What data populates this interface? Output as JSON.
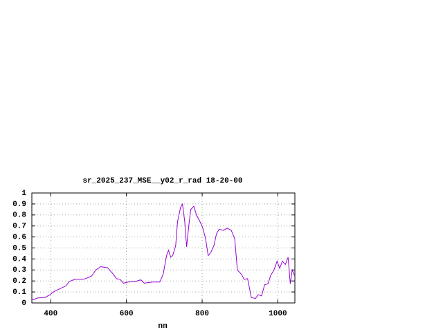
{
  "chart_data": {
    "type": "line",
    "title": "sr_2025_237_MSE__y02_r_rad 18-20-00",
    "x_label": "nm",
    "xlim": [
      350,
      1045
    ],
    "ylim": [
      0,
      1
    ],
    "xticks": [
      400,
      600,
      800,
      1000
    ],
    "yticks": [
      0,
      0.1,
      0.2,
      0.3,
      0.4,
      0.5,
      0.6,
      0.7,
      0.8,
      0.9,
      1
    ],
    "grid": true,
    "series": [
      {
        "color": "#9400d3",
        "x": [
          350,
          366,
          385,
          398,
          409,
          431,
          440,
          449,
          464,
          486,
          495,
          508,
          519,
          532,
          550,
          563,
          574,
          583,
          592,
          605,
          623,
          638,
          647,
          669,
          688,
          697,
          706,
          711,
          717,
          722,
          730,
          735,
          743,
          748,
          754,
          759,
          765,
          770,
          778,
          785,
          792,
          801,
          809,
          816,
          823,
          831,
          838,
          845,
          856,
          866,
          877,
          886,
          893,
          904,
          911,
          920,
          930,
          941,
          948,
          957,
          965,
          974,
          981,
          990,
          998,
          1005,
          1012,
          1020,
          1027,
          1033,
          1038,
          1044
        ],
        "values": [
          0.025,
          0.045,
          0.05,
          0.075,
          0.105,
          0.14,
          0.155,
          0.195,
          0.215,
          0.215,
          0.225,
          0.245,
          0.3,
          0.33,
          0.32,
          0.27,
          0.22,
          0.215,
          0.18,
          0.19,
          0.195,
          0.21,
          0.18,
          0.19,
          0.19,
          0.26,
          0.43,
          0.48,
          0.415,
          0.43,
          0.52,
          0.74,
          0.87,
          0.9,
          0.74,
          0.51,
          0.71,
          0.85,
          0.88,
          0.8,
          0.755,
          0.69,
          0.585,
          0.43,
          0.46,
          0.52,
          0.63,
          0.67,
          0.66,
          0.68,
          0.66,
          0.585,
          0.3,
          0.26,
          0.215,
          0.22,
          0.05,
          0.04,
          0.075,
          0.065,
          0.165,
          0.175,
          0.25,
          0.3,
          0.38,
          0.315,
          0.38,
          0.35,
          0.415,
          0.175,
          0.3,
          0.25
        ]
      }
    ]
  }
}
